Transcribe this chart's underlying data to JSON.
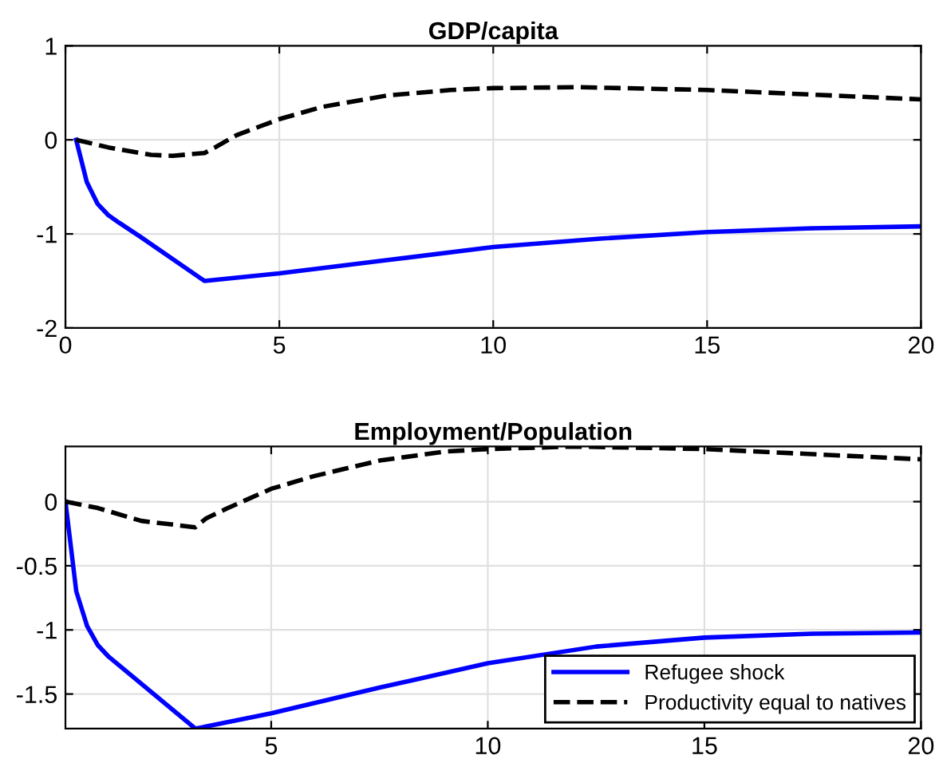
{
  "chart_data": [
    {
      "type": "line",
      "title": "GDP/capita",
      "xlim": [
        0,
        20
      ],
      "ylim": [
        -2,
        1
      ],
      "xticks": [
        0,
        5,
        10,
        15,
        20
      ],
      "yticks": [
        -2,
        -1,
        0,
        1
      ],
      "grid": true,
      "series": [
        {
          "color": "#0000ff",
          "line_style": "solid",
          "x": [
            0.25,
            0.5,
            0.75,
            1,
            1.25,
            1.75,
            3.25,
            5,
            7.5,
            10,
            12.5,
            15,
            17.5,
            20
          ],
          "values": [
            0,
            -0.45,
            -0.68,
            -0.8,
            -0.88,
            -1.03,
            -1.5,
            -1.42,
            -1.28,
            -1.14,
            -1.05,
            -0.98,
            -0.94,
            -0.92
          ]
        },
        {
          "color": "#000000",
          "line_style": "dashed",
          "x": [
            0.25,
            1,
            2,
            2.5,
            3.25,
            3.5,
            4,
            5,
            6,
            7.5,
            9,
            10,
            12,
            15,
            17.5,
            20
          ],
          "values": [
            0,
            -0.08,
            -0.16,
            -0.17,
            -0.14,
            -0.08,
            0.05,
            0.22,
            0.35,
            0.47,
            0.53,
            0.55,
            0.56,
            0.53,
            0.48,
            0.43
          ]
        }
      ]
    },
    {
      "type": "line",
      "title": "Employment/Population",
      "xlim": [
        0.25,
        20
      ],
      "ylim": [
        -1.77,
        0.43
      ],
      "xticks": [
        5,
        10,
        15,
        20
      ],
      "yticks": [
        -1.5,
        -1,
        -0.5,
        0
      ],
      "grid": true,
      "legend": "bottom right",
      "series": [
        {
          "name": "Refugee shock",
          "color": "#0000ff",
          "line_style": "solid",
          "x": [
            0.25,
            0.5,
            0.75,
            1,
            1.25,
            1.75,
            3.25,
            5,
            7.5,
            10,
            12.5,
            15,
            17.5,
            20
          ],
          "values": [
            0,
            -0.7,
            -0.97,
            -1.12,
            -1.21,
            -1.35,
            -1.77,
            -1.65,
            -1.45,
            -1.26,
            -1.13,
            -1.06,
            -1.03,
            -1.02
          ]
        },
        {
          "name": "Productivity equal to natives",
          "color": "#000000",
          "line_style": "dashed",
          "x": [
            0.25,
            1,
            2,
            3.25,
            3.5,
            4,
            5,
            6,
            7.5,
            9,
            10,
            12,
            15,
            17.5,
            20
          ],
          "values": [
            0,
            -0.05,
            -0.15,
            -0.2,
            -0.13,
            -0.05,
            0.1,
            0.2,
            0.32,
            0.39,
            0.41,
            0.43,
            0.41,
            0.37,
            0.33
          ]
        }
      ]
    }
  ]
}
